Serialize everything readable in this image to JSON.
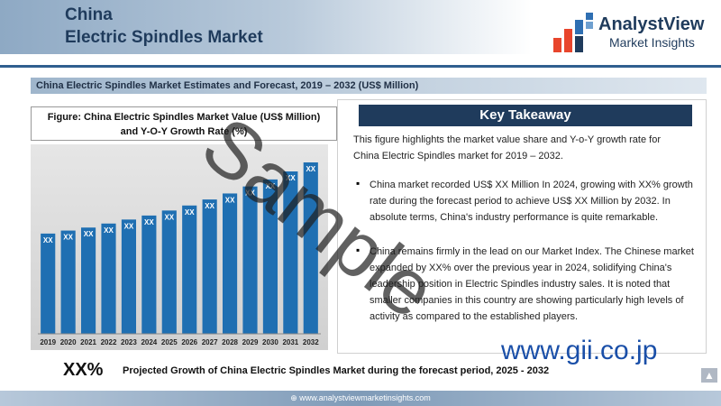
{
  "header": {
    "title_line1": "China",
    "title_line2": "Electric Spindles  Market",
    "logo_name": "AnalystView",
    "logo_tagline": "Market Insights"
  },
  "subtitle": "China Electric Spindles  Market Estimates and Forecast, 2019 – 2032 (US$ Million)",
  "figure_title": {
    "line1": "Figure: China Electric Spindles  Market Value (US$ Million)",
    "line2": "and Y-O-Y Growth Rate (%)"
  },
  "chart_data": {
    "type": "bar",
    "categories": [
      "2019",
      "2020",
      "2021",
      "2022",
      "2023",
      "2024",
      "2025",
      "2026",
      "2027",
      "2028",
      "2029",
      "2030",
      "2031",
      "2032"
    ],
    "values": [
      100,
      103,
      106,
      110,
      114,
      118,
      123,
      128,
      134,
      140,
      147,
      154,
      162,
      171
    ],
    "data_labels": [
      "XX",
      "XX",
      "XX",
      "XX",
      "XX",
      "XX",
      "XX",
      "XX",
      "XX",
      "XX",
      "XX",
      "XX",
      "XX",
      "XX"
    ],
    "ylim": [
      0,
      180
    ],
    "bar_color": "#1f6fb2",
    "grid": false
  },
  "takeaway": {
    "header": "Key Takeaway",
    "intro": "This figure highlights the market value share and Y-o-Y growth rate for China Electric Spindles  market for 2019 – 2032.",
    "bullets": [
      "China market recorded US$ XX Million In 2024, growing with XX% growth rate during the forecast period to achieve US$ XX Million by 2032. In absolute terms, China's industry performance is quite remarkable.",
      "China remains firmly in the lead on our Market Index. The Chinese market expanded by XX% over the previous year in 2024, solidifying China's leadership position in Electric Spindles  industry sales. It is noted that smaller companies in this country are showing particularly high levels of activity as compared to the established players."
    ]
  },
  "footer": {
    "label": "XX%",
    "text": "Projected Growth of China Electric Spindles  Market during the forecast period, 2025 - 2032",
    "website": "www.analystviewmarketinsights.com"
  },
  "watermark": {
    "sample": "Sample",
    "gii": "www.gii.co.jp"
  }
}
